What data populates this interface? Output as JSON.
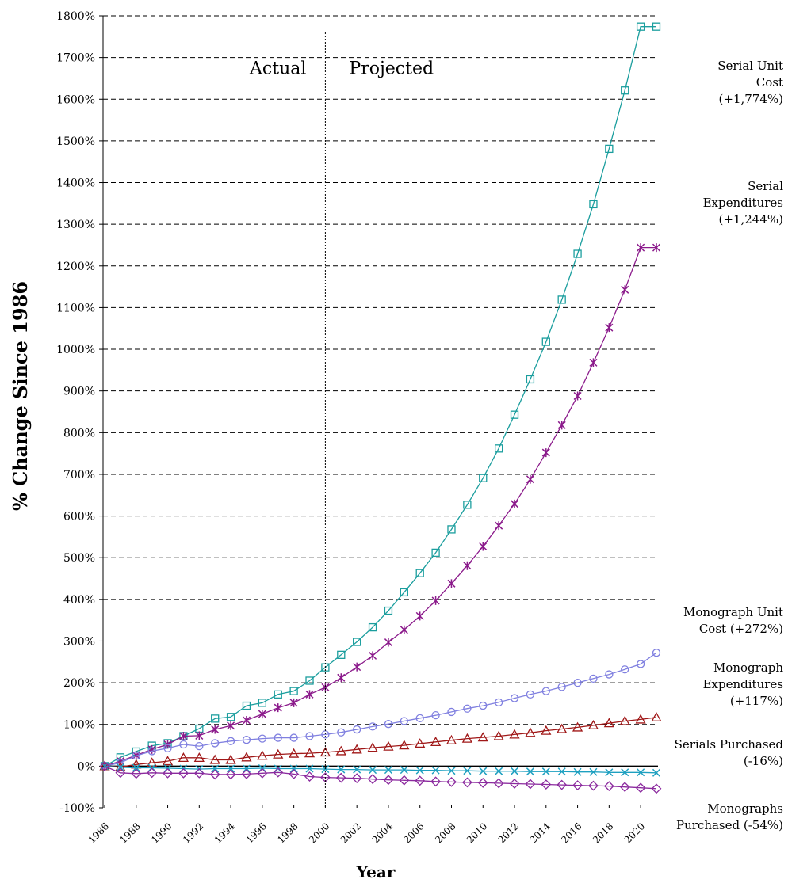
{
  "chart_data": {
    "type": "line",
    "title": "",
    "xlabel": "Year",
    "ylabel": "% Change Since 1986",
    "xlim": [
      1986,
      2021
    ],
    "ylim": [
      -100,
      1800
    ],
    "yticks": [
      -100,
      0,
      100,
      200,
      300,
      400,
      500,
      600,
      700,
      800,
      900,
      1000,
      1100,
      1200,
      1300,
      1400,
      1500,
      1600,
      1700,
      1800
    ],
    "ytick_labels": [
      "-100%",
      "0%",
      "100%",
      "200%",
      "300%",
      "400%",
      "500%",
      "600%",
      "700%",
      "800%",
      "900%",
      "1000%",
      "1100%",
      "1200%",
      "1300%",
      "1400%",
      "1500%",
      "1600%",
      "1700%",
      "1800%"
    ],
    "xticks": [
      1986,
      1988,
      1990,
      1992,
      1994,
      1996,
      1998,
      2000,
      2002,
      2004,
      2006,
      2008,
      2010,
      2012,
      2014,
      2016,
      2018,
      2020
    ],
    "xtick_labels": [
      "1986",
      "1988",
      "1990",
      "1992",
      "1994",
      "1996",
      "1998",
      "2000",
      "2002",
      "2004",
      "2006",
      "2008",
      "2010",
      "2012",
      "2014",
      "2016",
      "2018",
      "2020"
    ],
    "grid": "horizontal dashed",
    "divider_year": 2000,
    "region_labels": [
      "Actual",
      "Projected"
    ],
    "x": [
      1986,
      1987,
      1988,
      1989,
      1990,
      1991,
      1992,
      1993,
      1994,
      1995,
      1996,
      1997,
      1998,
      1999,
      2000,
      2001,
      2002,
      2003,
      2004,
      2005,
      2006,
      2007,
      2008,
      2009,
      2010,
      2011,
      2012,
      2013,
      2014,
      2015,
      2016,
      2017,
      2018,
      2019,
      2020,
      2021
    ],
    "series": [
      {
        "name": "Serial Unit Cost (+1,774%)",
        "annotation": [
          "Serial Unit",
          "Cost",
          "(+1,774%)"
        ],
        "marker": "square",
        "color": "#1b9e9e",
        "values": [
          0,
          21,
          35,
          49,
          55,
          72,
          90,
          114,
          118,
          145,
          152,
          172,
          180,
          205,
          237,
          267,
          298,
          333,
          373,
          417,
          463,
          512,
          568,
          627,
          691,
          762,
          843,
          928,
          1018,
          1119,
          1229,
          1348,
          1481,
          1621,
          1774,
          1774
        ]
      },
      {
        "name": "Serial Expenditures (+1,244%)",
        "annotation": [
          "Serial",
          "Expenditures",
          "(+1,244%)"
        ],
        "marker": "asterisk",
        "color": "#8b1a8b",
        "values": [
          0,
          12,
          26,
          40,
          52,
          72,
          73,
          88,
          97,
          110,
          125,
          140,
          152,
          172,
          189,
          212,
          238,
          265,
          297,
          327,
          360,
          397,
          438,
          481,
          527,
          577,
          629,
          688,
          752,
          818,
          888,
          968,
          1052,
          1143,
          1244,
          1244
        ]
      },
      {
        "name": "Monograph Unit Cost (+272%)",
        "annotation": [
          "Monograph Unit",
          "Cost (+272%)"
        ],
        "marker": "circle",
        "color": "#8080e0",
        "values": [
          0,
          8,
          25,
          36,
          43,
          52,
          48,
          55,
          60,
          63,
          66,
          68,
          68,
          72,
          76,
          81,
          88,
          95,
          101,
          108,
          115,
          122,
          130,
          138,
          145,
          153,
          163,
          172,
          180,
          190,
          200,
          210,
          220,
          232,
          245,
          272
        ]
      },
      {
        "name": "Monograph Expenditures (+117%)",
        "annotation": [
          "Monograph",
          "Expenditures",
          "(+117%)"
        ],
        "marker": "triangle",
        "color": "#a01818",
        "values": [
          0,
          -2,
          4,
          8,
          12,
          20,
          20,
          15,
          15,
          21,
          25,
          28,
          30,
          31,
          33,
          36,
          40,
          44,
          47,
          50,
          54,
          58,
          62,
          66,
          69,
          72,
          76,
          80,
          85,
          89,
          93,
          98,
          103,
          108,
          112,
          117
        ]
      },
      {
        "name": "Serials Purchased (-16%)",
        "annotation": [
          "Serials Purchased",
          "(-16%)"
        ],
        "marker": "x",
        "color": "#1ea0c0",
        "values": [
          0,
          -3,
          -4,
          -4,
          -5,
          -6,
          -7,
          -6,
          -6,
          -6,
          -5,
          -6,
          -6,
          -6,
          -7,
          -8,
          -8,
          -9,
          -9,
          -9,
          -10,
          -10,
          -11,
          -11,
          -12,
          -12,
          -12,
          -13,
          -13,
          -13,
          -14,
          -14,
          -15,
          -15,
          -15,
          -16
        ]
      },
      {
        "name": "Monographs Purchased (-54%)",
        "annotation": [
          "Monographs",
          "Purchased (-54%)"
        ],
        "marker": "diamond",
        "color": "#8b2a9e",
        "values": [
          0,
          -16,
          -18,
          -16,
          -17,
          -17,
          -17,
          -20,
          -20,
          -19,
          -17,
          -15,
          -19,
          -25,
          -27,
          -28,
          -29,
          -31,
          -33,
          -34,
          -35,
          -37,
          -38,
          -39,
          -40,
          -41,
          -42,
          -43,
          -44,
          -45,
          -46,
          -47,
          -48,
          -50,
          -52,
          -54
        ]
      }
    ]
  }
}
